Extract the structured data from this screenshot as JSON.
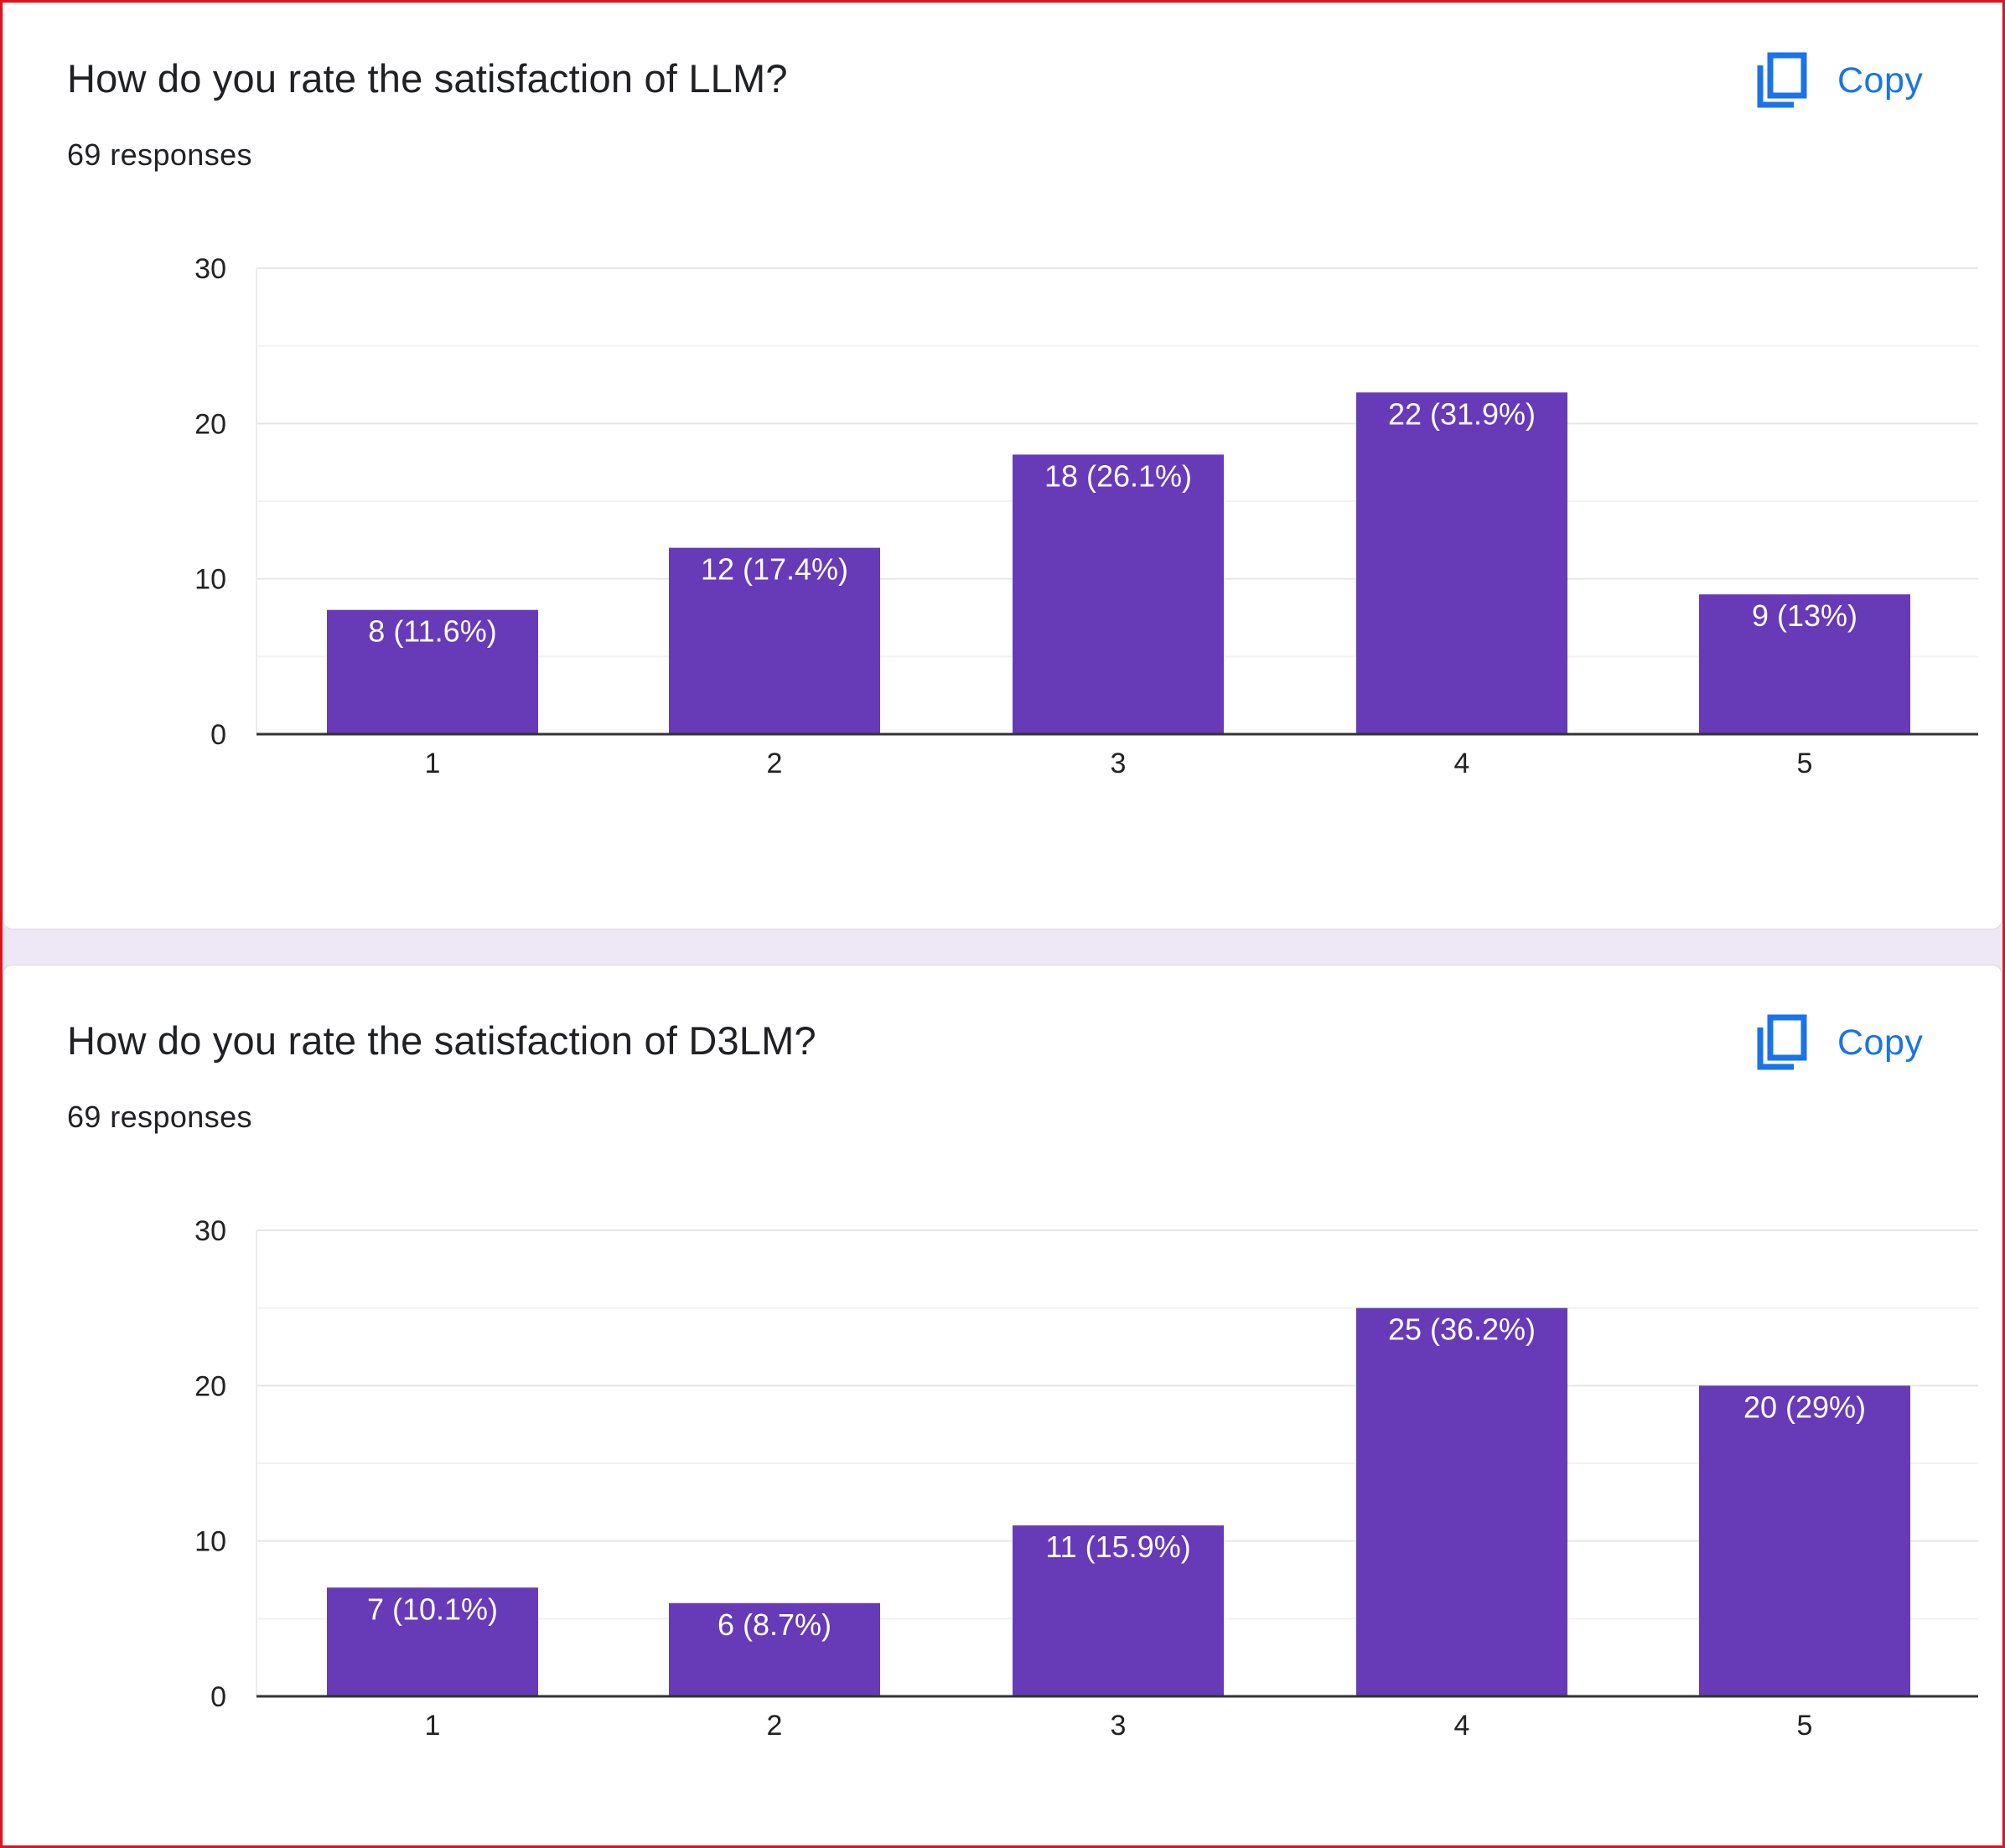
{
  "copy_label": "Copy",
  "icons": {
    "copy": "copy-icon"
  },
  "colors": {
    "bar": "#673ab7",
    "accent": "#1a73e8",
    "frame": "#e0141e",
    "page_background": "#ede7f6"
  },
  "questions": [
    {
      "title": "How do you rate the satisfaction of LLM?",
      "responses": "69 responses"
    },
    {
      "title": "How do you rate the satisfaction of D3LM?",
      "responses": "69 responses"
    }
  ],
  "chart_data": [
    {
      "type": "bar",
      "title": "How do you rate the satisfaction of LLM?",
      "categories": [
        "1",
        "2",
        "3",
        "4",
        "5"
      ],
      "values": [
        8,
        12,
        18,
        22,
        9
      ],
      "labels": [
        "8 (11.6%)",
        "12 (17.4%)",
        "18 (26.1%)",
        "22 (31.9%)",
        "9 (13%)"
      ],
      "yticks": [
        0,
        10,
        20,
        30
      ],
      "ylim": [
        0,
        30
      ],
      "xlabel": "",
      "ylabel": "",
      "grid": true,
      "legend": "none"
    },
    {
      "type": "bar",
      "title": "How do you rate the satisfaction of D3LM?",
      "categories": [
        "1",
        "2",
        "3",
        "4",
        "5"
      ],
      "values": [
        7,
        6,
        11,
        25,
        20
      ],
      "labels": [
        "7 (10.1%)",
        "6 (8.7%)",
        "11 (15.9%)",
        "25 (36.2%)",
        "20 (29%)"
      ],
      "yticks": [
        0,
        10,
        20,
        30
      ],
      "ylim": [
        0,
        30
      ],
      "xlabel": "",
      "ylabel": "",
      "grid": true,
      "legend": "none"
    }
  ]
}
